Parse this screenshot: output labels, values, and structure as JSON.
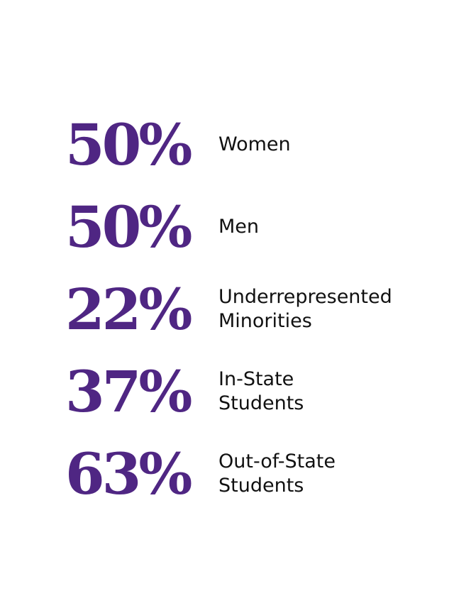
{
  "accent_color": "#4f2683",
  "stats": [
    {
      "value": "50%",
      "label_lines": [
        "Women"
      ]
    },
    {
      "value": "50%",
      "label_lines": [
        "Men"
      ]
    },
    {
      "value": "22%",
      "label_lines": [
        "Underrepresented",
        "Minorities"
      ]
    },
    {
      "value": "37%",
      "label_lines": [
        "In-State",
        "Students"
      ]
    },
    {
      "value": "63%",
      "label_lines": [
        "Out-of-State",
        "Students"
      ]
    }
  ]
}
